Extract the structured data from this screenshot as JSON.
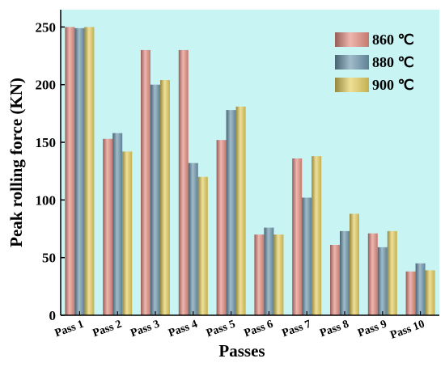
{
  "chart_data": {
    "type": "bar",
    "xlabel": "Passes",
    "ylabel": "Peak rolling force (KN)",
    "categories": [
      "Pass 1",
      "Pass 2",
      "Pass 3",
      "Pass 4",
      "Pass 5",
      "Pass 6",
      "Pass 7",
      "Pass 8",
      "Pass 9",
      "Pass 10"
    ],
    "series": [
      {
        "name": "860 ℃",
        "values": [
          250,
          153,
          230,
          230,
          152,
          70,
          136,
          61,
          71,
          38
        ],
        "color": "#e58f83"
      },
      {
        "name": "880 ℃",
        "values": [
          249,
          158,
          200,
          132,
          178,
          76,
          102,
          73,
          59,
          45
        ],
        "color": "#6f98ae"
      },
      {
        "name": "900 ℃",
        "values": [
          250,
          142,
          204,
          120,
          181,
          70,
          138,
          88,
          73,
          39
        ],
        "color": "#e6cf5f"
      }
    ],
    "ylim": [
      0,
      265
    ],
    "yticks": [
      0,
      50,
      100,
      150,
      200,
      250
    ],
    "plot_background": "#c8f4f4",
    "legend_position": "top-right",
    "grid": false
  }
}
